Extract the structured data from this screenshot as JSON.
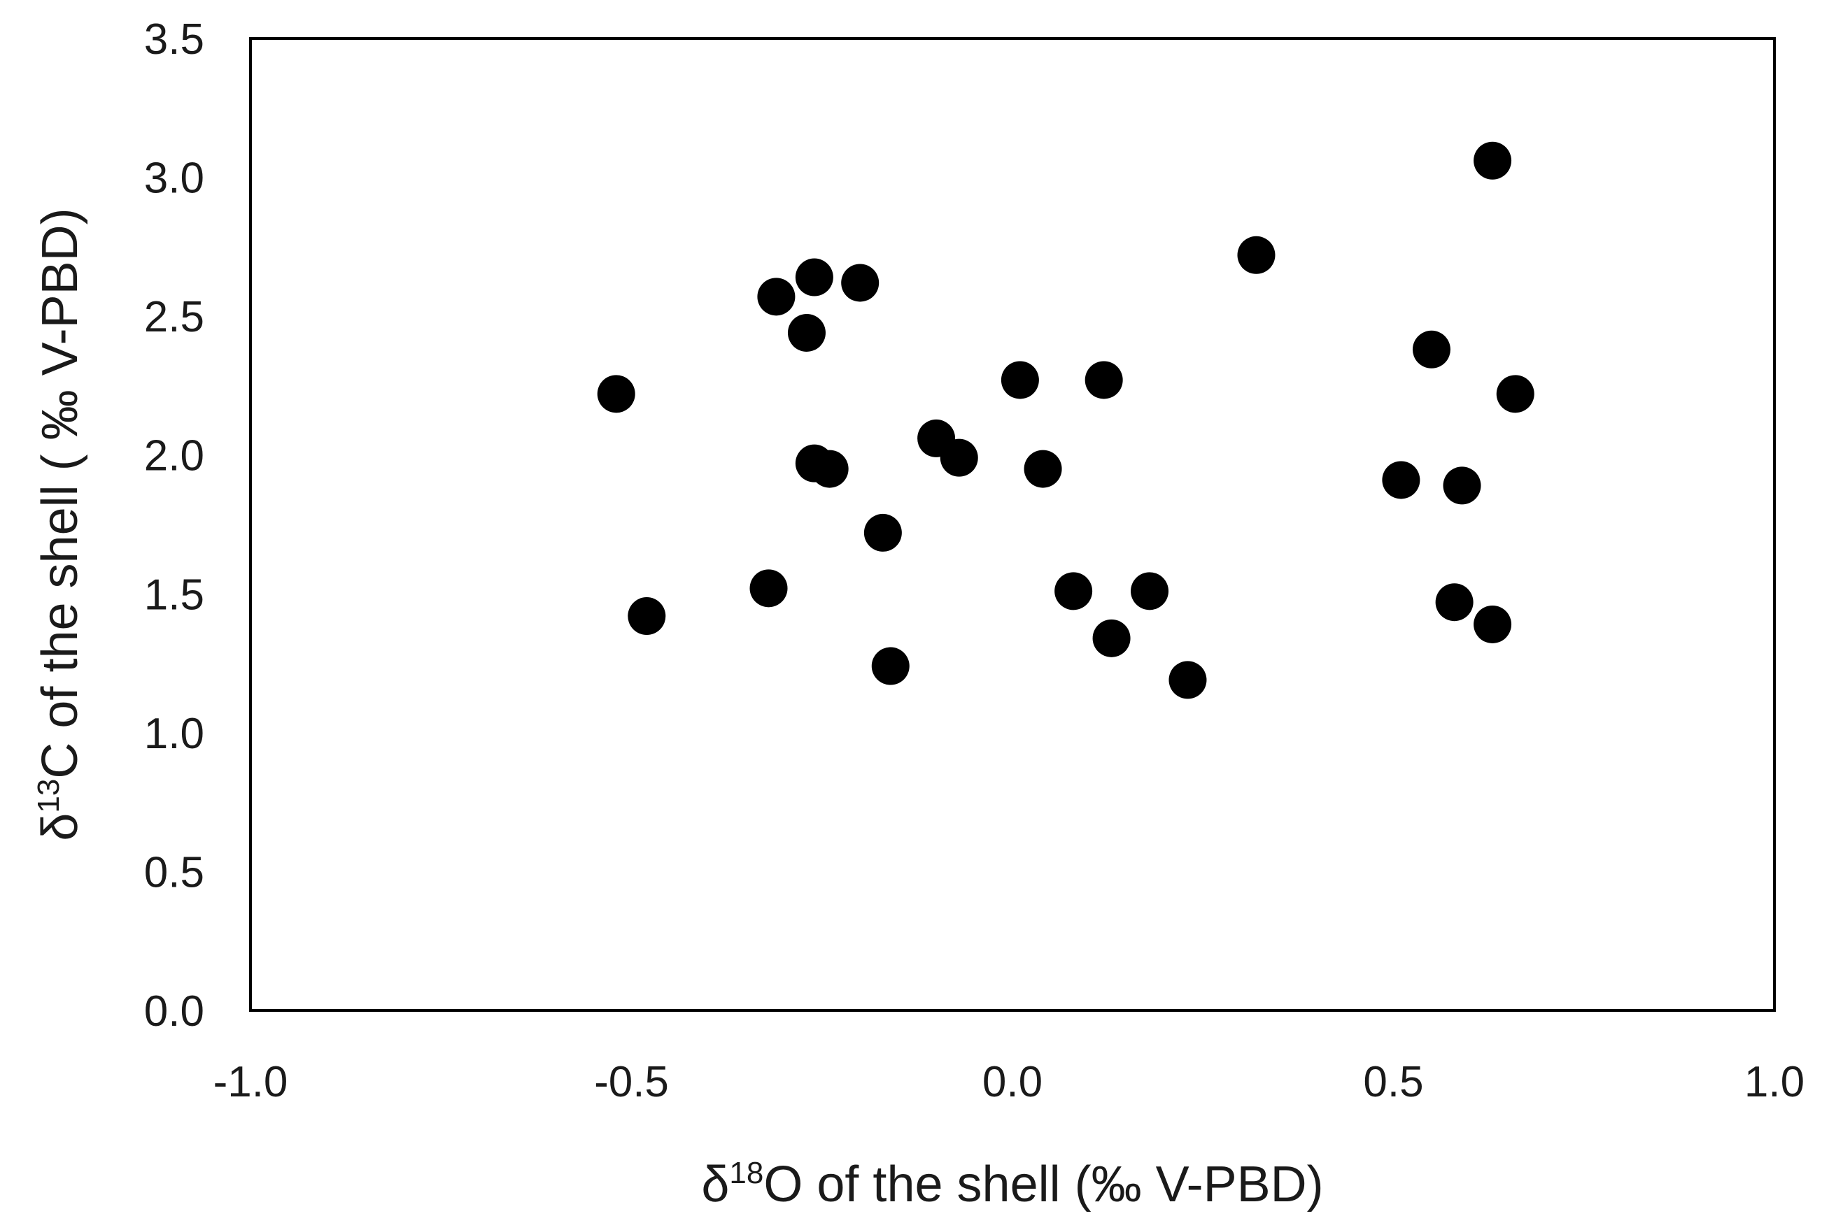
{
  "chart_data": {
    "type": "scatter",
    "xlabel": {
      "delta": "δ",
      "sup": "18",
      "rest": "O  of the shell (‰ V-PBD)"
    },
    "ylabel": {
      "delta": "δ",
      "sup": "13",
      "rest": "C of the shell ( ‰ V-PBD)"
    },
    "xlim": [
      -1.0,
      1.0
    ],
    "ylim": [
      0.0,
      3.5
    ],
    "xticks": [
      "-1.0",
      "-0.5",
      "0.0",
      "0.5",
      "1.0"
    ],
    "yticks": [
      "0.0",
      "0.5",
      "1.0",
      "1.5",
      "2.0",
      "2.5",
      "3.0",
      "3.5"
    ],
    "grid": false,
    "marker_color": "#000000",
    "points": [
      {
        "x": -0.52,
        "y": 2.22
      },
      {
        "x": -0.48,
        "y": 1.42
      },
      {
        "x": -0.31,
        "y": 2.57
      },
      {
        "x": -0.32,
        "y": 1.52
      },
      {
        "x": -0.26,
        "y": 2.64
      },
      {
        "x": -0.27,
        "y": 2.44
      },
      {
        "x": -0.2,
        "y": 2.62
      },
      {
        "x": -0.26,
        "y": 1.97
      },
      {
        "x": -0.24,
        "y": 1.95
      },
      {
        "x": -0.17,
        "y": 1.72
      },
      {
        "x": -0.16,
        "y": 1.24
      },
      {
        "x": -0.1,
        "y": 2.06
      },
      {
        "x": -0.07,
        "y": 1.99
      },
      {
        "x": 0.01,
        "y": 2.27
      },
      {
        "x": 0.04,
        "y": 1.95
      },
      {
        "x": 0.08,
        "y": 1.51
      },
      {
        "x": 0.12,
        "y": 2.27
      },
      {
        "x": 0.13,
        "y": 1.34
      },
      {
        "x": 0.18,
        "y": 1.51
      },
      {
        "x": 0.23,
        "y": 1.19
      },
      {
        "x": 0.32,
        "y": 2.72
      },
      {
        "x": 0.51,
        "y": 1.91
      },
      {
        "x": 0.55,
        "y": 2.38
      },
      {
        "x": 0.58,
        "y": 1.47
      },
      {
        "x": 0.59,
        "y": 1.89
      },
      {
        "x": 0.63,
        "y": 3.06
      },
      {
        "x": 0.63,
        "y": 1.39
      },
      {
        "x": 0.66,
        "y": 2.22
      }
    ]
  }
}
